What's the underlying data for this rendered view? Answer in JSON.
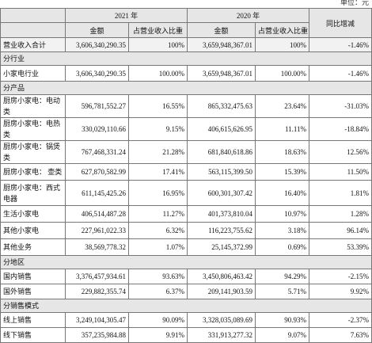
{
  "header": {
    "unit": "单位：元",
    "years": [
      "2021 年",
      "2020 年"
    ],
    "change": "同比增减",
    "columns": [
      "金额",
      "占营业收入比重",
      "金额",
      "占营业收入比重"
    ]
  },
  "rows": [
    [
      "营业收入合计",
      "3,606,340,290.35",
      "100%",
      "3,659,948,367.01",
      "100%",
      "-1.46%"
    ],
    [
      "分行业"
    ],
    [
      "小家电行业",
      "3,606,340,290.35",
      "100.00%",
      "3,659,948,367.01",
      "100.00%",
      "-1.46%"
    ],
    [
      "分产品"
    ],
    [
      "厨房小家电：电动类",
      "596,781,552.27",
      "16.55%",
      "865,332,475.63",
      "23.64%",
      "-31.03%"
    ],
    [
      "厨房小家电：电热类",
      "330,029,110.66",
      "9.15%",
      "406,615,626.95",
      "11.11%",
      "-18.84%"
    ],
    [
      "厨房小家电：锅煲类",
      "767,468,331.24",
      "21.28%",
      "681,840,618.86",
      "18.63%",
      "12.56%"
    ],
    [
      "厨房小家电： 壶类",
      "627,870,582.99",
      "17.41%",
      "563,115,399.50",
      "15.39%",
      "11.50%"
    ],
    [
      "厨房小家电：西式电器",
      "611,145,425.26",
      "16.95%",
      "600,301,307.42",
      "16.40%",
      "1.81%"
    ],
    [
      "生活小家电",
      "406,514,487.28",
      "11.27%",
      "401,373,810.04",
      "10.97%",
      "1.28%"
    ],
    [
      "其他小家电",
      "227,961,022.33",
      "6.32%",
      "116,223,755.62",
      "3.18%",
      "96.14%"
    ],
    [
      "其他业务",
      "38,569,778.32",
      "1.07%",
      "25,145,372.99",
      "0.69%",
      "53.39%"
    ],
    [
      "分地区"
    ],
    [
      "国内销售",
      "3,376,457,934.61",
      "93.63%",
      "3,450,806,463.42",
      "94.29%",
      "-2.15%"
    ],
    [
      "国外销售",
      "229,882,355.74",
      "6.37%",
      "209,141,903.59",
      "5.71%",
      "9.92%"
    ],
    [
      "分销售模式"
    ],
    [
      "线上销售",
      "3,249,104,305.47",
      "90.09%",
      "3,328,035,089.69",
      "90.93%",
      "-2.37%"
    ],
    [
      "线下销售",
      "357,235,984.88",
      "9.91%",
      "331,913,277.32",
      "9.07%",
      "7.63%"
    ]
  ]
}
